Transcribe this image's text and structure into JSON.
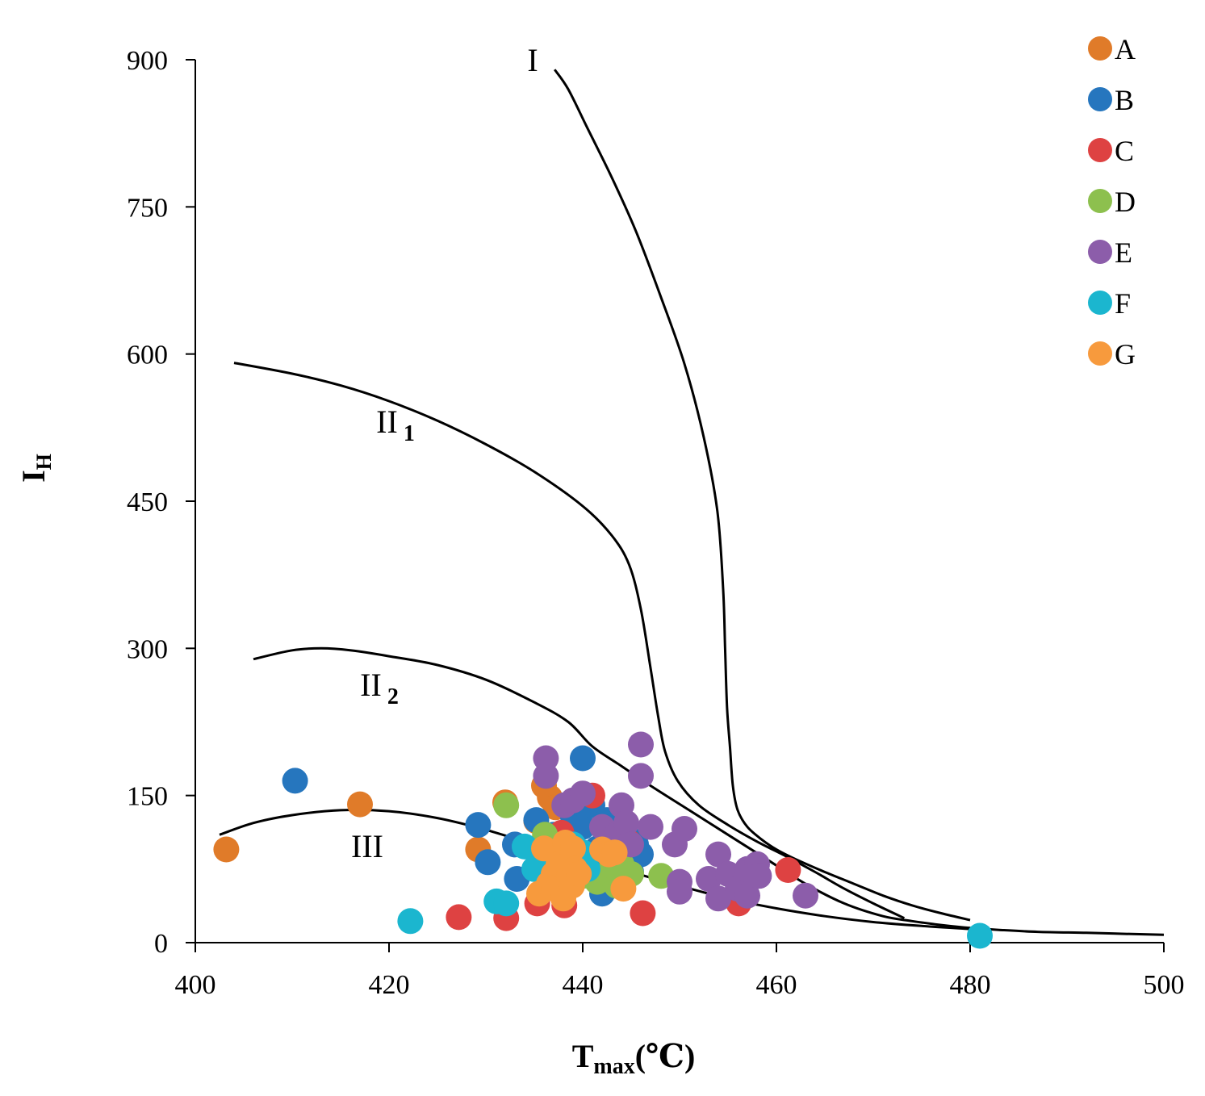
{
  "chart_data": {
    "type": "scatter",
    "title": "",
    "xlabel": {
      "main": "T",
      "sub": "max",
      "unit": "(℃)"
    },
    "ylabel": {
      "main": "I",
      "sub": "H"
    },
    "xlim": [
      400,
      500
    ],
    "ylim": [
      0,
      900
    ],
    "x_ticks": [
      400,
      420,
      440,
      460,
      480,
      500
    ],
    "y_ticks": [
      0,
      150,
      300,
      450,
      600,
      750,
      900
    ],
    "grid": false,
    "legend_position": "top-right",
    "curves": [
      {
        "name": "I",
        "label_main": "I",
        "label_sub": "",
        "points": [
          [
            437.1,
            890
          ],
          [
            438.5,
            870
          ],
          [
            440.5,
            830
          ],
          [
            443,
            780
          ],
          [
            445.5,
            725
          ],
          [
            448,
            660
          ],
          [
            450.5,
            590
          ],
          [
            452.5,
            515
          ],
          [
            453.9,
            440
          ],
          [
            454.5,
            360
          ],
          [
            454.7,
            300
          ],
          [
            454.9,
            240
          ],
          [
            455.2,
            200
          ],
          [
            455.5,
            160
          ],
          [
            456,
            135
          ],
          [
            457,
            118
          ],
          [
            458.5,
            105
          ],
          [
            460,
            95
          ],
          [
            462,
            85
          ],
          [
            465,
            72
          ],
          [
            468,
            60
          ],
          [
            471,
            48
          ],
          [
            474,
            38
          ],
          [
            477,
            30
          ],
          [
            480,
            23
          ]
        ]
      },
      {
        "name": "II1",
        "label_main": "II",
        "label_sub": "1",
        "points": [
          [
            404,
            591
          ],
          [
            410,
            580
          ],
          [
            415,
            568
          ],
          [
            420,
            552
          ],
          [
            425,
            532
          ],
          [
            430,
            508
          ],
          [
            435,
            480
          ],
          [
            440,
            445
          ],
          [
            443,
            415
          ],
          [
            444.8,
            385
          ],
          [
            446,
            340
          ],
          [
            447,
            280
          ],
          [
            447.8,
            230
          ],
          [
            448.5,
            195
          ],
          [
            449.8,
            165
          ],
          [
            452,
            140
          ],
          [
            455,
            120
          ],
          [
            458,
            103
          ],
          [
            461,
            88
          ],
          [
            464,
            72
          ],
          [
            467,
            55
          ],
          [
            470,
            40
          ],
          [
            473.2,
            25
          ]
        ]
      },
      {
        "name": "II2",
        "label_main": "II",
        "label_sub": "2",
        "points": [
          [
            406,
            289
          ],
          [
            410,
            298
          ],
          [
            413,
            300
          ],
          [
            416,
            298
          ],
          [
            420,
            292
          ],
          [
            425,
            283
          ],
          [
            430,
            268
          ],
          [
            435,
            245
          ],
          [
            438.5,
            225
          ],
          [
            441,
            200
          ],
          [
            444,
            180
          ],
          [
            447,
            160
          ],
          [
            451,
            135
          ],
          [
            455,
            110
          ],
          [
            459,
            85
          ],
          [
            463,
            60
          ],
          [
            467,
            40
          ],
          [
            471,
            27
          ],
          [
            474,
            22
          ],
          [
            477,
            18
          ],
          [
            480,
            15
          ],
          [
            483,
            13
          ],
          [
            487,
            11
          ],
          [
            492,
            10
          ],
          [
            496,
            9
          ],
          [
            500,
            8
          ]
        ]
      },
      {
        "name": "III",
        "label_main": "III",
        "label_sub": "",
        "points": [
          [
            402.5,
            110
          ],
          [
            406,
            122
          ],
          [
            410,
            130
          ],
          [
            415,
            135
          ],
          [
            420,
            134
          ],
          [
            425,
            127
          ],
          [
            430,
            115
          ],
          [
            435,
            100
          ],
          [
            440,
            86
          ],
          [
            445,
            72
          ],
          [
            450,
            58
          ],
          [
            455,
            45
          ],
          [
            460,
            35
          ],
          [
            465,
            27
          ],
          [
            470,
            21
          ],
          [
            475,
            17
          ],
          [
            480,
            14
          ]
        ]
      }
    ],
    "series": [
      {
        "name": "A",
        "color": "#E07B29",
        "points": [
          [
            403.2,
            95
          ],
          [
            417,
            141
          ],
          [
            429.2,
            95
          ],
          [
            432,
            143
          ],
          [
            435.2,
            124
          ],
          [
            436,
            160
          ],
          [
            436.6,
            148
          ],
          [
            437.2,
            138
          ],
          [
            438,
            112
          ],
          [
            438.5,
            92
          ]
        ]
      },
      {
        "name": "B",
        "color": "#2676BE",
        "points": [
          [
            410.3,
            165
          ],
          [
            429.2,
            120
          ],
          [
            430.2,
            82
          ],
          [
            433,
            100
          ],
          [
            433.2,
            65
          ],
          [
            435.2,
            125
          ],
          [
            436,
            82
          ],
          [
            437,
            110
          ],
          [
            438,
            95
          ],
          [
            439,
            128
          ],
          [
            440,
            188
          ],
          [
            440,
            118
          ],
          [
            440.5,
            82
          ],
          [
            441,
            140
          ],
          [
            441.5,
            96
          ],
          [
            442,
            50
          ],
          [
            442.5,
            125
          ],
          [
            443,
            100
          ],
          [
            444,
            83
          ],
          [
            444.5,
            110
          ],
          [
            445,
            72
          ],
          [
            445.5,
            100
          ],
          [
            446,
            90
          ]
        ]
      },
      {
        "name": "C",
        "color": "#DE4242",
        "points": [
          [
            427.2,
            26
          ],
          [
            432.1,
            25
          ],
          [
            435.3,
            40
          ],
          [
            437.8,
            112
          ],
          [
            438.1,
            38
          ],
          [
            441,
            150
          ],
          [
            444.8,
            102
          ],
          [
            446.2,
            30
          ],
          [
            456.1,
            40
          ],
          [
            461.2,
            74
          ]
        ]
      },
      {
        "name": "D",
        "color": "#8DC04E",
        "points": [
          [
            432.1,
            140
          ],
          [
            436.1,
            110
          ],
          [
            437,
            100
          ],
          [
            440,
            68
          ],
          [
            441.5,
            62
          ],
          [
            442.5,
            70
          ],
          [
            443.5,
            58
          ],
          [
            444,
            80
          ],
          [
            445,
            70
          ],
          [
            448.1,
            68
          ]
        ]
      },
      {
        "name": "E",
        "color": "#8C5DAA",
        "points": [
          [
            436.2,
            188
          ],
          [
            436.2,
            170
          ],
          [
            438.1,
            140
          ],
          [
            439,
            145
          ],
          [
            440,
            152
          ],
          [
            442,
            118
          ],
          [
            443.5,
            110
          ],
          [
            444,
            140
          ],
          [
            444.5,
            122
          ],
          [
            445,
            100
          ],
          [
            446,
            202
          ],
          [
            446,
            170
          ],
          [
            447,
            118
          ],
          [
            449.5,
            100
          ],
          [
            450,
            62
          ],
          [
            450,
            52
          ],
          [
            450.5,
            116
          ],
          [
            453,
            65
          ],
          [
            454,
            90
          ],
          [
            454,
            45
          ],
          [
            455,
            70
          ],
          [
            456,
            55
          ],
          [
            457,
            75
          ],
          [
            457,
            48
          ],
          [
            458,
            80
          ],
          [
            458.2,
            68
          ],
          [
            463,
            48
          ]
        ]
      },
      {
        "name": "F",
        "color": "#1BB6CF",
        "points": [
          [
            422.2,
            22
          ],
          [
            431.1,
            42
          ],
          [
            432.1,
            40
          ],
          [
            434,
            98
          ],
          [
            435,
            75
          ],
          [
            437,
            85
          ],
          [
            439,
            100
          ],
          [
            440,
            92
          ],
          [
            440.5,
            75
          ],
          [
            481,
            7
          ]
        ]
      },
      {
        "name": "G",
        "color": "#F79A3D",
        "points": [
          [
            435.5,
            50
          ],
          [
            436,
            96
          ],
          [
            436.5,
            60
          ],
          [
            437,
            70
          ],
          [
            437,
            55
          ],
          [
            437.5,
            80
          ],
          [
            438,
            45
          ],
          [
            438.2,
            102
          ],
          [
            438.6,
            68
          ],
          [
            438.9,
            58
          ],
          [
            439,
            96
          ],
          [
            439.2,
            75
          ],
          [
            439.6,
            70
          ],
          [
            442,
            95
          ],
          [
            442.7,
            90
          ],
          [
            443.3,
            92
          ],
          [
            444.2,
            55
          ]
        ]
      }
    ]
  }
}
